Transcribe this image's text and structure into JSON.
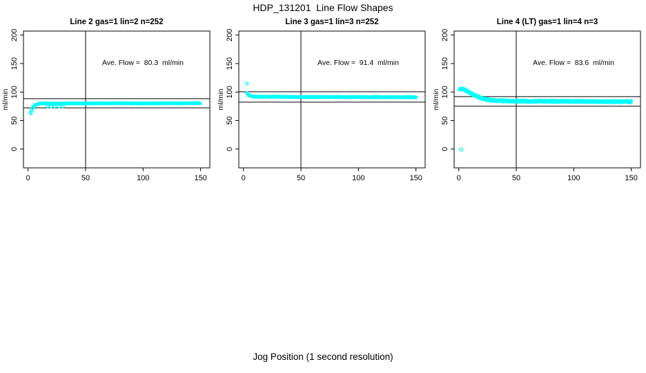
{
  "figure": {
    "title": "HDP_131201  Line Flow Shapes",
    "xlabel": "Jog Position (1 second resolution)",
    "background": "#ffffff",
    "axis_color": "#000000",
    "point_color": "#00ffff"
  },
  "chart_data": [
    {
      "type": "scatter",
      "title": "Line 2 gas=1 lin=2 n=252",
      "n": 252,
      "annotation": "Ave. Flow =  80.3  ml/min",
      "ave_flow_ml_min": 80.3,
      "ylabel": "ml/min",
      "x_ticks": [
        0,
        50,
        100,
        150
      ],
      "y_ticks": [
        0,
        50,
        100,
        150,
        200
      ],
      "xlim": [
        -4,
        158
      ],
      "ylim": [
        -33,
        207
      ],
      "grid": false,
      "vline_x": 50,
      "hlines": [
        88.3,
        72.3
      ],
      "outliers": [
        [
          2.2,
          64
        ],
        [
          17,
          75
        ],
        [
          20,
          74.5
        ],
        [
          23,
          75
        ],
        [
          27,
          74.5
        ],
        [
          30,
          75
        ]
      ],
      "curve": [
        [
          2.5,
          63
        ],
        [
          3.5,
          70
        ],
        [
          4.5,
          74
        ],
        [
          6,
          77
        ],
        [
          8,
          79
        ],
        [
          11,
          80
        ],
        [
          30,
          80
        ],
        [
          60,
          80.3
        ],
        [
          100,
          80.3
        ],
        [
          150,
          80.5
        ]
      ],
      "x_start": 2.5,
      "x_end": 150,
      "step": 0.6,
      "jitter": 0.8,
      "point_r": 2.0
    },
    {
      "type": "scatter",
      "title": "Line 3 gas=1 lin=3 n=252",
      "n": 252,
      "annotation": "Ave. Flow =  91.4  ml/min",
      "ave_flow_ml_min": 91.4,
      "ylabel": "ml/min",
      "x_ticks": [
        0,
        50,
        100,
        150
      ],
      "y_ticks": [
        0,
        50,
        100,
        150,
        200
      ],
      "xlim": [
        -4,
        158
      ],
      "ylim": [
        -33,
        207
      ],
      "grid": false,
      "vline_x": 50,
      "hlines": [
        100.5,
        82.3
      ],
      "outliers": [
        [
          3,
          115
        ]
      ],
      "curve": [
        [
          3,
          99
        ],
        [
          4,
          96
        ],
        [
          5,
          94
        ],
        [
          6.5,
          92.5
        ],
        [
          9,
          92
        ],
        [
          15,
          91.8
        ],
        [
          40,
          91.6
        ],
        [
          80,
          91.3
        ],
        [
          120,
          91.2
        ],
        [
          150,
          91
        ]
      ],
      "x_start": 3,
      "x_end": 150,
      "step": 0.6,
      "jitter": 1.1,
      "point_r": 2.0
    },
    {
      "type": "scatter",
      "title": "Line 4 (LT) gas=1 lin=4 n=3",
      "n": 3,
      "annotation": "Ave. Flow =  83.6  ml/min",
      "ave_flow_ml_min": 83.6,
      "ylabel": "ml/min",
      "x_ticks": [
        0,
        50,
        100,
        150
      ],
      "y_ticks": [
        0,
        50,
        100,
        150,
        200
      ],
      "xlim": [
        -4,
        158
      ],
      "ylim": [
        -33,
        207
      ],
      "grid": false,
      "vline_x": 50,
      "hlines": [
        92.0,
        75.2
      ],
      "outliers": [
        [
          2,
          -1
        ]
      ],
      "curve": [
        [
          1,
          105
        ],
        [
          2.5,
          105.5
        ],
        [
          4,
          104.5
        ],
        [
          6,
          103
        ],
        [
          8,
          101
        ],
        [
          10,
          98.5
        ],
        [
          12,
          96
        ],
        [
          14,
          94
        ],
        [
          16,
          92
        ],
        [
          18,
          90.5
        ],
        [
          20,
          89
        ],
        [
          23,
          87.5
        ],
        [
          26,
          86.3
        ],
        [
          30,
          85.3
        ],
        [
          35,
          84.8
        ],
        [
          40,
          84.4
        ],
        [
          50,
          84
        ],
        [
          70,
          83.7
        ],
        [
          100,
          83.5
        ],
        [
          150,
          83.2
        ]
      ],
      "x_start": 1,
      "x_end": 150,
      "step": 0.4,
      "jitter": 2.1,
      "point_r": 2.3
    }
  ]
}
